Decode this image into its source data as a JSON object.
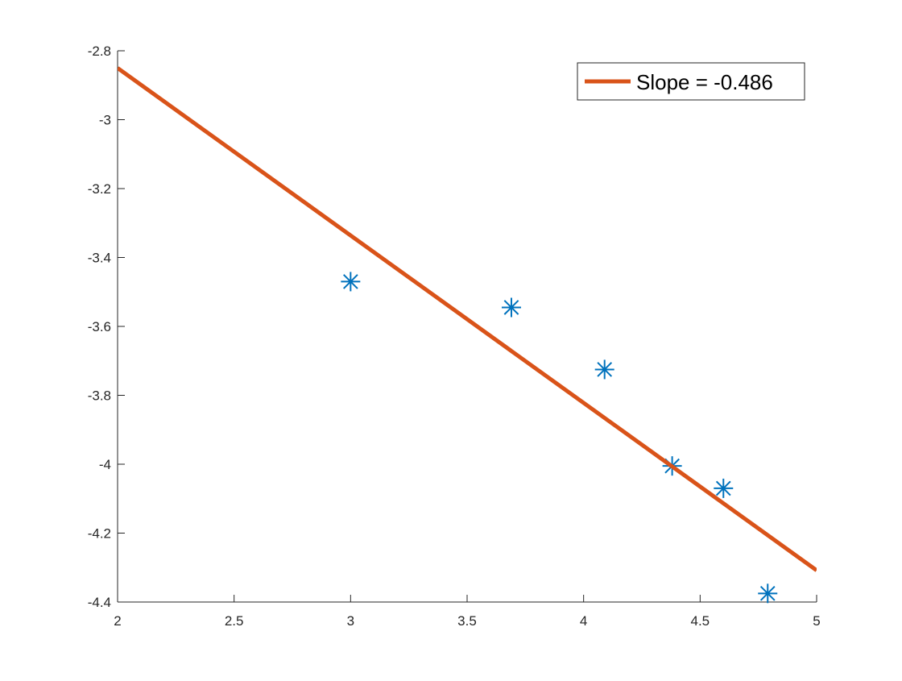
{
  "chart_data": {
    "type": "scatter",
    "title": "",
    "xlabel": "",
    "ylabel": "",
    "xlim": [
      2,
      5
    ],
    "ylim": [
      -4.4,
      -2.8
    ],
    "xticks": [
      2,
      2.5,
      3,
      3.5,
      4,
      4.5,
      5
    ],
    "yticks": [
      -2.8,
      -3,
      -3.2,
      -3.4,
      -3.6,
      -3.8,
      -4,
      -4.2,
      -4.4
    ],
    "xtick_labels": [
      "2",
      "2.5",
      "3",
      "3.5",
      "4",
      "4.5",
      "5"
    ],
    "ytick_labels": [
      "-2.8",
      "-3",
      "-3.2",
      "-3.4",
      "-3.6",
      "-3.8",
      "-4",
      "-4.2",
      "-4.4"
    ],
    "grid": false,
    "legend_position": "top-right",
    "series": [
      {
        "kind": "scatter",
        "marker": "asterisk",
        "color": "#0072BD",
        "x": [
          3.0,
          3.69,
          4.09,
          4.38,
          4.6,
          4.79
        ],
        "y": [
          -3.47,
          -3.545,
          -3.725,
          -4.005,
          -4.07,
          -4.375
        ]
      },
      {
        "kind": "line",
        "name": "Slope = -0.486",
        "color": "#D95319",
        "x": [
          2,
          5
        ],
        "y": [
          -2.85,
          -4.308
        ]
      }
    ],
    "legend": [
      {
        "label": "Slope = -0.486",
        "color": "#D95319",
        "style": "line"
      }
    ]
  }
}
